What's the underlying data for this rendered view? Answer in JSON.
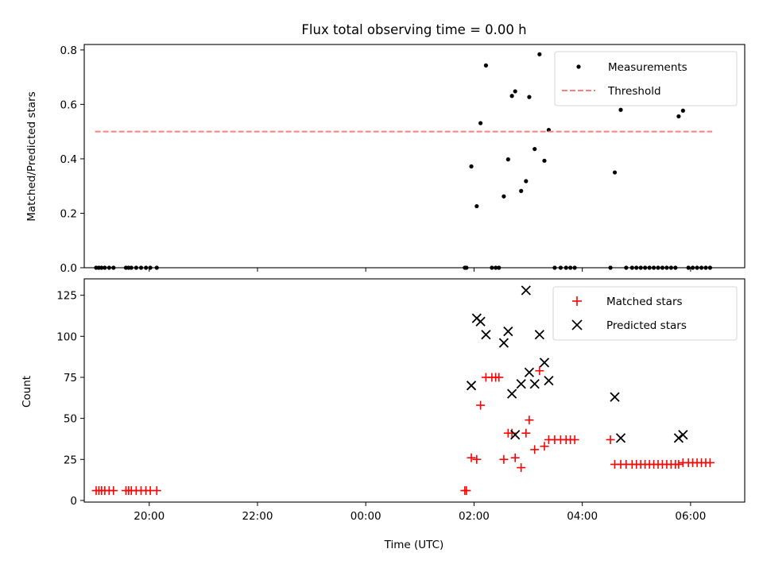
{
  "title": "Flux total observing time = 0.00 h",
  "chart_data": [
    {
      "type": "scatter",
      "ylabel": "Matched/Predicted stars",
      "xlim": [
        -5.2,
        7.0
      ],
      "ylim": [
        0,
        0.82
      ],
      "yticks": [
        0,
        0.2,
        0.4,
        0.6,
        0.8
      ],
      "ytick_labels": [
        "0.0",
        "0.2",
        "0.4",
        "0.6",
        "0.8"
      ],
      "xticks": [
        -4,
        -2,
        0,
        2,
        4,
        6
      ],
      "xtick_labels": [
        "",
        "",
        "",
        "",
        "",
        ""
      ],
      "legend_loc": "upper-right",
      "series": [
        {
          "name": "Measurements",
          "color": "#000000",
          "marker": "dot",
          "points": [
            [
              -4.98,
              0
            ],
            [
              -4.93,
              0
            ],
            [
              -4.88,
              0
            ],
            [
              -4.82,
              0
            ],
            [
              -4.74,
              0
            ],
            [
              -4.66,
              0
            ],
            [
              -4.43,
              0
            ],
            [
              -4.38,
              0
            ],
            [
              -4.33,
              0
            ],
            [
              -4.24,
              0
            ],
            [
              -4.15,
              0
            ],
            [
              -4.06,
              0
            ],
            [
              -3.98,
              0
            ],
            [
              -3.86,
              0
            ],
            [
              1.83,
              0
            ],
            [
              1.86,
              0
            ],
            [
              1.95,
              0.372
            ],
            [
              2.05,
              0.226
            ],
            [
              2.12,
              0.531
            ],
            [
              2.22,
              0.743
            ],
            [
              2.33,
              0
            ],
            [
              2.4,
              0
            ],
            [
              2.46,
              0
            ],
            [
              2.55,
              0.262
            ],
            [
              2.63,
              0.398
            ],
            [
              2.7,
              0.631
            ],
            [
              2.76,
              0.648
            ],
            [
              2.87,
              0.282
            ],
            [
              2.96,
              0.318
            ],
            [
              3.02,
              0.627
            ],
            [
              3.12,
              0.436
            ],
            [
              3.21,
              0.784
            ],
            [
              3.3,
              0.393
            ],
            [
              3.38,
              0.506
            ],
            [
              3.49,
              0
            ],
            [
              3.6,
              0
            ],
            [
              3.7,
              0
            ],
            [
              3.78,
              0
            ],
            [
              3.86,
              0
            ],
            [
              4.52,
              0
            ],
            [
              4.6,
              0.35
            ],
            [
              4.71,
              0.58
            ],
            [
              4.81,
              0
            ],
            [
              4.92,
              0
            ],
            [
              5.0,
              0
            ],
            [
              5.08,
              0
            ],
            [
              5.16,
              0
            ],
            [
              5.24,
              0
            ],
            [
              5.32,
              0
            ],
            [
              5.4,
              0
            ],
            [
              5.48,
              0
            ],
            [
              5.56,
              0
            ],
            [
              5.64,
              0
            ],
            [
              5.72,
              0
            ],
            [
              5.78,
              0.556
            ],
            [
              5.86,
              0.577
            ],
            [
              5.96,
              0
            ],
            [
              6.04,
              0
            ],
            [
              6.12,
              0
            ],
            [
              6.2,
              0
            ],
            [
              6.28,
              0
            ],
            [
              6.36,
              0
            ]
          ]
        },
        {
          "name": "Threshold",
          "color": "#ff7f7f",
          "line": "dashed",
          "x": [
            -5.0,
            6.4
          ],
          "y": [
            0.5,
            0.5
          ]
        }
      ]
    },
    {
      "type": "scatter",
      "xlabel": "Time (UTC)",
      "ylabel": "Count",
      "xlim": [
        -5.2,
        7.0
      ],
      "ylim": [
        -1,
        135
      ],
      "yticks": [
        0,
        25,
        50,
        75,
        100,
        125
      ],
      "ytick_labels": [
        "0",
        "25",
        "50",
        "75",
        "100",
        "125"
      ],
      "xticks": [
        -4,
        -2,
        0,
        2,
        4,
        6
      ],
      "xtick_labels": [
        "20:00",
        "22:00",
        "00:00",
        "02:00",
        "04:00",
        "06:00"
      ],
      "legend_loc": "upper-right",
      "series": [
        {
          "name": "Matched stars",
          "color": "#ff0000",
          "marker": "plus",
          "points": [
            [
              -4.98,
              6
            ],
            [
              -4.93,
              6
            ],
            [
              -4.88,
              6
            ],
            [
              -4.82,
              6
            ],
            [
              -4.74,
              6
            ],
            [
              -4.66,
              6
            ],
            [
              -4.43,
              6
            ],
            [
              -4.38,
              6
            ],
            [
              -4.33,
              6
            ],
            [
              -4.24,
              6
            ],
            [
              -4.15,
              6
            ],
            [
              -4.06,
              6
            ],
            [
              -3.98,
              6
            ],
            [
              -3.86,
              6
            ],
            [
              1.83,
              6
            ],
            [
              1.86,
              6
            ],
            [
              1.95,
              26
            ],
            [
              2.05,
              25
            ],
            [
              2.12,
              58
            ],
            [
              2.22,
              75
            ],
            [
              2.33,
              75
            ],
            [
              2.4,
              75
            ],
            [
              2.46,
              75
            ],
            [
              2.55,
              25
            ],
            [
              2.63,
              41
            ],
            [
              2.7,
              41
            ],
            [
              2.76,
              26
            ],
            [
              2.87,
              20
            ],
            [
              2.96,
              41
            ],
            [
              3.02,
              49
            ],
            [
              3.12,
              31
            ],
            [
              3.21,
              79
            ],
            [
              3.3,
              33
            ],
            [
              3.38,
              37
            ],
            [
              3.49,
              37
            ],
            [
              3.6,
              37
            ],
            [
              3.7,
              37
            ],
            [
              3.78,
              37
            ],
            [
              3.86,
              37
            ],
            [
              4.52,
              37
            ],
            [
              4.6,
              22
            ],
            [
              4.71,
              22
            ],
            [
              4.81,
              22
            ],
            [
              4.92,
              22
            ],
            [
              5.0,
              22
            ],
            [
              5.08,
              22
            ],
            [
              5.16,
              22
            ],
            [
              5.24,
              22
            ],
            [
              5.32,
              22
            ],
            [
              5.4,
              22
            ],
            [
              5.48,
              22
            ],
            [
              5.56,
              22
            ],
            [
              5.64,
              22
            ],
            [
              5.72,
              22
            ],
            [
              5.78,
              22
            ],
            [
              5.86,
              23
            ],
            [
              5.96,
              23
            ],
            [
              6.04,
              23
            ],
            [
              6.12,
              23
            ],
            [
              6.2,
              23
            ],
            [
              6.28,
              23
            ],
            [
              6.36,
              23
            ]
          ]
        },
        {
          "name": "Predicted stars",
          "color": "#000000",
          "marker": "x",
          "points": [
            [
              1.95,
              70
            ],
            [
              2.05,
              111
            ],
            [
              2.12,
              109
            ],
            [
              2.22,
              101
            ],
            [
              2.55,
              96
            ],
            [
              2.63,
              103
            ],
            [
              2.7,
              65
            ],
            [
              2.76,
              40
            ],
            [
              2.87,
              71
            ],
            [
              2.96,
              128
            ],
            [
              3.02,
              78
            ],
            [
              3.12,
              71
            ],
            [
              3.21,
              101
            ],
            [
              3.3,
              84
            ],
            [
              3.38,
              73
            ],
            [
              4.6,
              63
            ],
            [
              4.71,
              38
            ],
            [
              5.78,
              38
            ],
            [
              5.86,
              40
            ]
          ]
        }
      ]
    }
  ]
}
